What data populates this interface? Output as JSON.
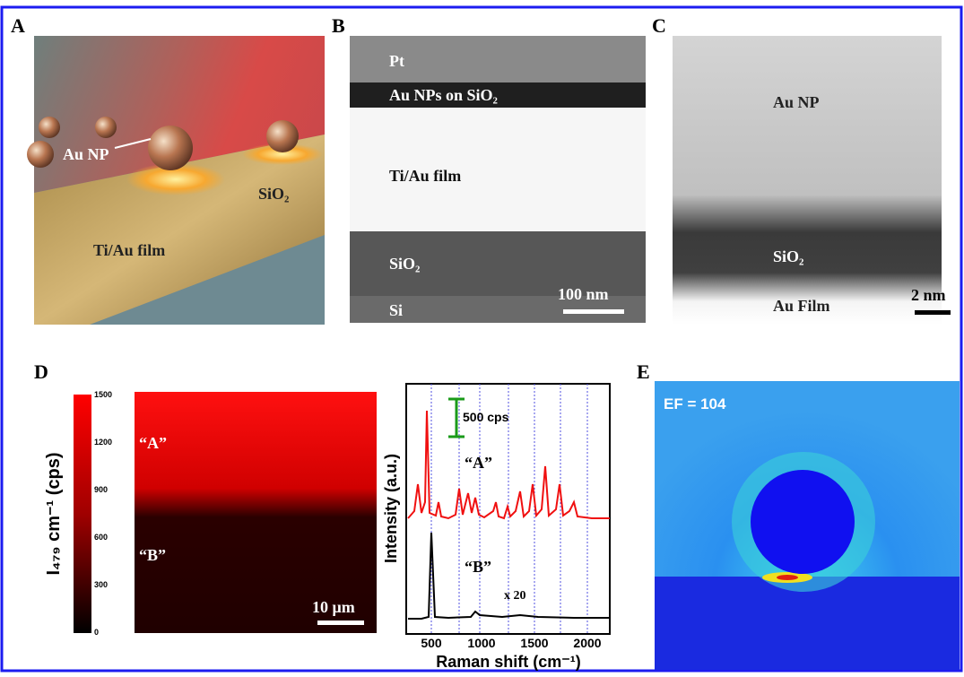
{
  "panels": {
    "a": {
      "label": "A",
      "annotations": [
        "Au NP",
        "SiO₂",
        "Ti/Au film"
      ]
    },
    "b": {
      "label": "B",
      "annotations": [
        "Pt",
        "Au NPs on SiO₂",
        "Ti/Au film",
        "SiO₂",
        "Si"
      ],
      "scale_bar": "100 nm"
    },
    "c": {
      "label": "C",
      "annotations": [
        "Au NP",
        "SiO₂",
        "Au Film"
      ],
      "scale_bar": "2 nm"
    },
    "d": {
      "label": "D",
      "map": {
        "colorbar_label": "I₄₇₉ cm⁻¹ (cps)",
        "colorbar_ticks": [
          "1500",
          "1200",
          "900",
          "600",
          "300",
          "0"
        ],
        "regions": [
          "“A”",
          "“B”"
        ],
        "scale_bar": "10 μm"
      },
      "spectrum": {
        "y_label": "Intensity (a.u.)",
        "x_label": "Raman shift (cm⁻¹)",
        "x_ticks": [
          "500",
          "1000",
          "1500",
          "2000"
        ],
        "scale_label": "500 cps",
        "curves": [
          "“A”",
          "“B”"
        ],
        "multiplier": "x 20"
      }
    },
    "e": {
      "label": "E",
      "annotation": "EF = 104"
    }
  }
}
